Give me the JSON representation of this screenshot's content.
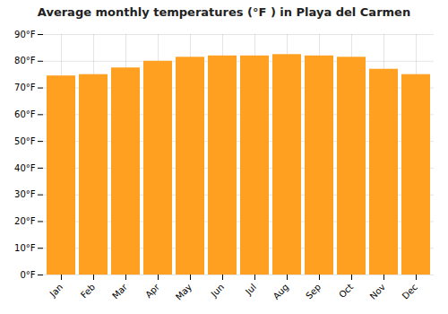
{
  "chart_data": {
    "type": "bar",
    "title": "Average monthly temperatures (°F ) in Playa del Carmen",
    "categories": [
      "Jan",
      "Feb",
      "Mar",
      "Apr",
      "May",
      "Jun",
      "Jul",
      "Aug",
      "Sep",
      "Oct",
      "Nov",
      "Dec"
    ],
    "values": [
      74.5,
      75.0,
      77.5,
      80.0,
      81.5,
      82.0,
      82.0,
      82.5,
      82.0,
      81.5,
      77.0,
      75.0
    ],
    "color": "#FFA020",
    "ylim": [
      0,
      90
    ],
    "yticks": [
      {
        "value": 0,
        "label": "0°F"
      },
      {
        "value": 10,
        "label": "10°F"
      },
      {
        "value": 20,
        "label": "20°F"
      },
      {
        "value": 30,
        "label": "30°F"
      },
      {
        "value": 40,
        "label": "40°F"
      },
      {
        "value": 50,
        "label": "50°F"
      },
      {
        "value": 60,
        "label": "60°F"
      },
      {
        "value": 70,
        "label": "70°F"
      },
      {
        "value": 80,
        "label": "80°F"
      },
      {
        "value": 90,
        "label": "90°F"
      }
    ],
    "grid": true
  }
}
